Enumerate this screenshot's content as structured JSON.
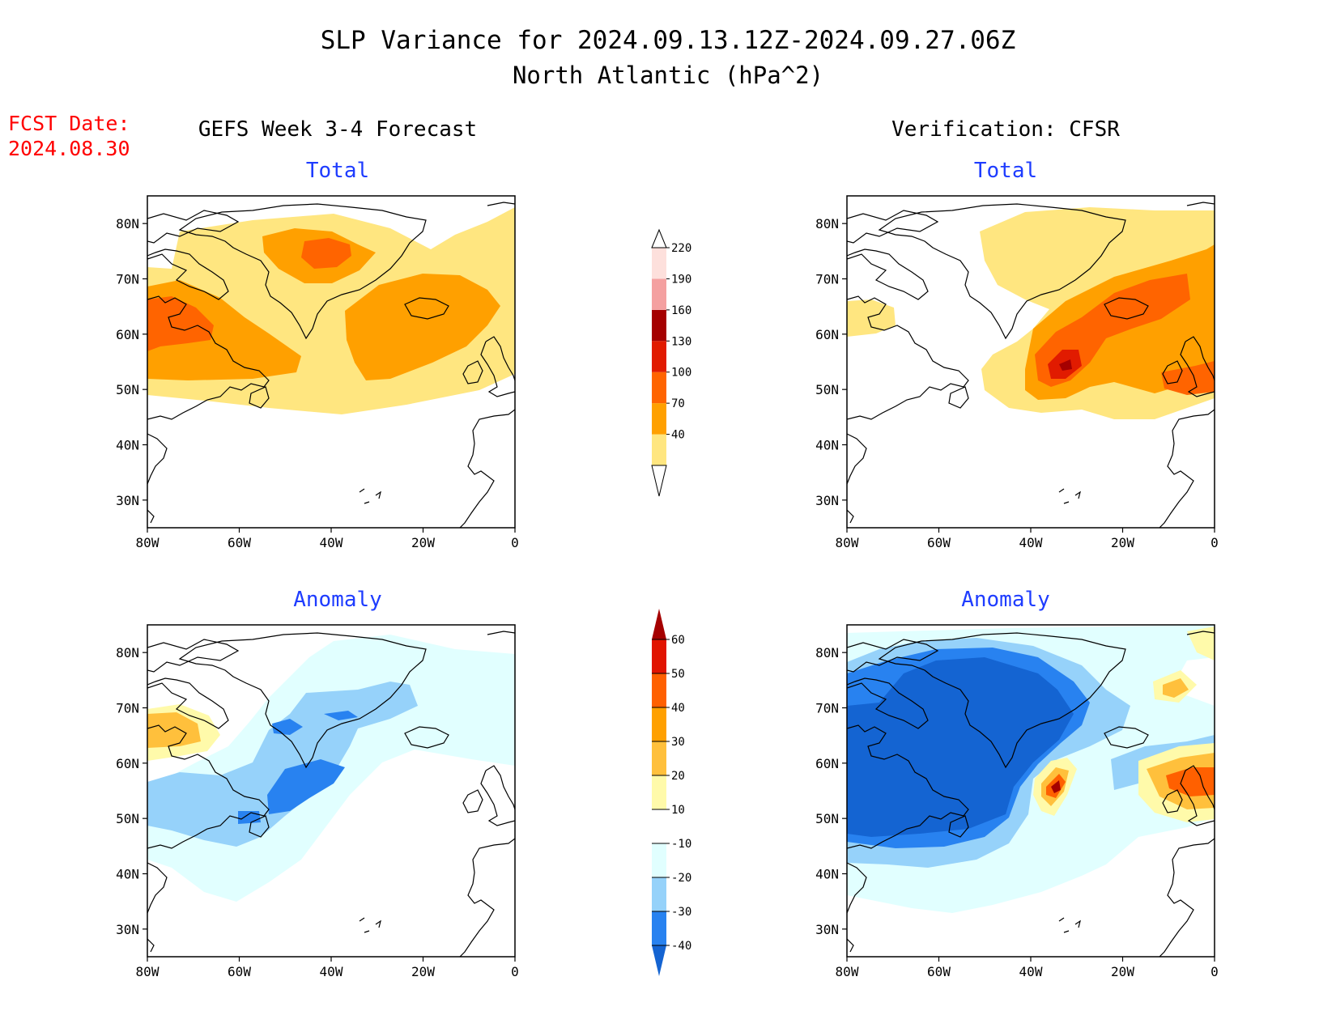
{
  "title": {
    "line1": "SLP Variance for 2024.09.13.12Z-2024.09.27.06Z",
    "line2": "North Atlantic (hPa^2)"
  },
  "fcst_date": {
    "label": "FCST Date:",
    "value": "2024.08.30"
  },
  "columns": {
    "left": "GEFS Week 3-4 Forecast",
    "right": "Verification: CFSR"
  },
  "panel_titles": {
    "total": "Total",
    "anomaly": "Anomaly"
  },
  "axes": {
    "lon_ticks": [
      "80W",
      "60W",
      "40W",
      "20W",
      "0"
    ],
    "lat_ticks": [
      "80N",
      "70N",
      "60N",
      "50N",
      "40N",
      "30N"
    ]
  },
  "colorbars": {
    "total": {
      "levels": [
        "40",
        "70",
        "100",
        "130",
        "160",
        "190",
        "220"
      ],
      "colors": [
        "#ffe680",
        "#ffa000",
        "#ff6400",
        "#e11b00",
        "#a50000",
        "#f4a0a0",
        "#fde0dc"
      ]
    },
    "anomaly": {
      "levels": [
        "-40",
        "-30",
        "-20",
        "-10",
        "10",
        "20",
        "30",
        "40",
        "50",
        "60"
      ],
      "colors": [
        "#1464d2",
        "#2882f0",
        "#96d2fa",
        "#e1ffff",
        "#ffffff",
        "#fffaaa",
        "#ffc03c",
        "#ffa000",
        "#ff6000",
        "#e11400",
        "#a50000"
      ]
    }
  },
  "colors": {
    "title_text": "#000000",
    "fcst_text": "#ff0000",
    "panel_title_text": "#1e3cff",
    "coast": "#000000"
  },
  "map_extent": {
    "lon": [
      -80,
      0
    ],
    "lat": [
      25,
      85
    ]
  }
}
